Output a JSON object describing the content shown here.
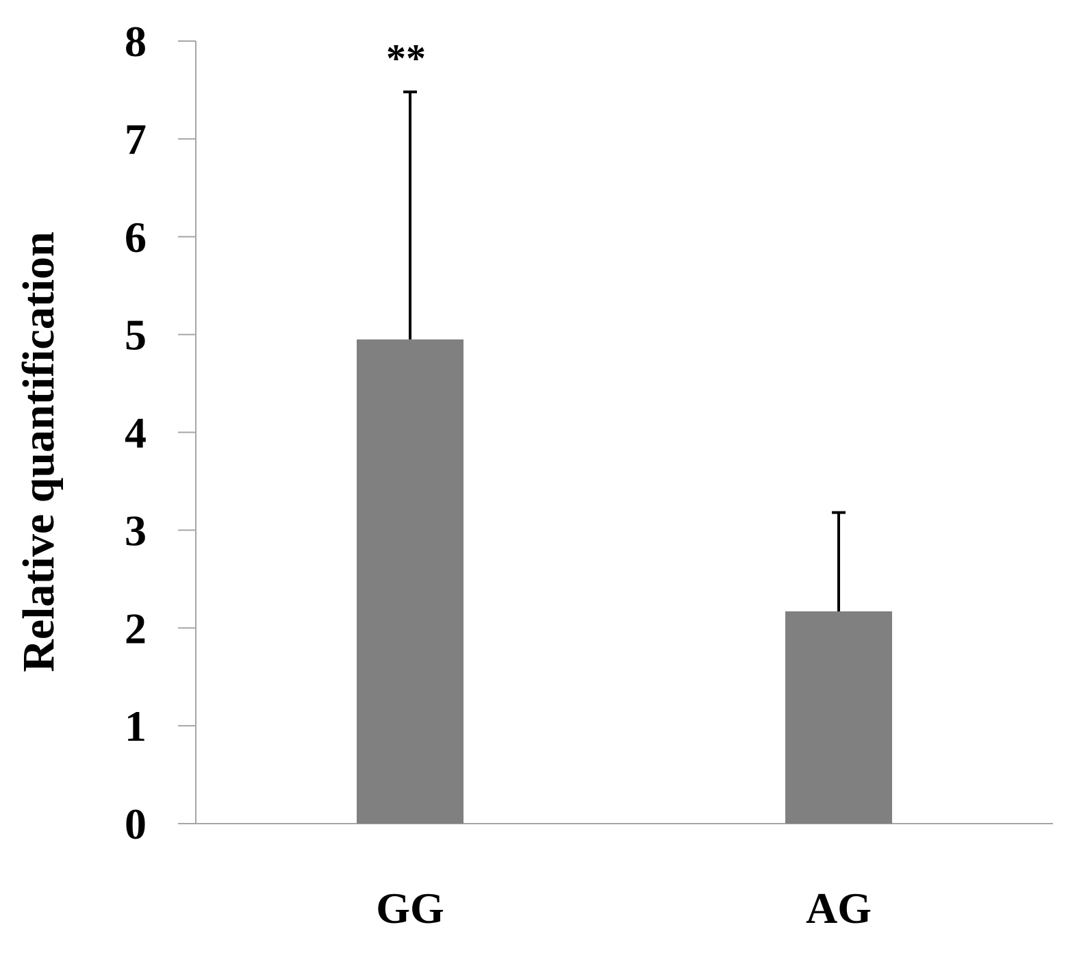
{
  "chart_data": {
    "type": "bar",
    "categories": [
      "GG",
      "AG"
    ],
    "values": [
      4.95,
      2.17
    ],
    "error_upper": [
      2.53,
      1.01
    ],
    "annotations": [
      "**",
      ""
    ],
    "title": "",
    "xlabel": "",
    "ylabel": "Relative quantification",
    "ylim": [
      0,
      8
    ],
    "yticks": [
      0,
      1,
      2,
      3,
      4,
      5,
      6,
      7,
      8
    ],
    "grid": false,
    "legend": "none",
    "bar_color": "#808080",
    "axis_color": "#a6a6a6",
    "error_bar_color": "#000000"
  }
}
